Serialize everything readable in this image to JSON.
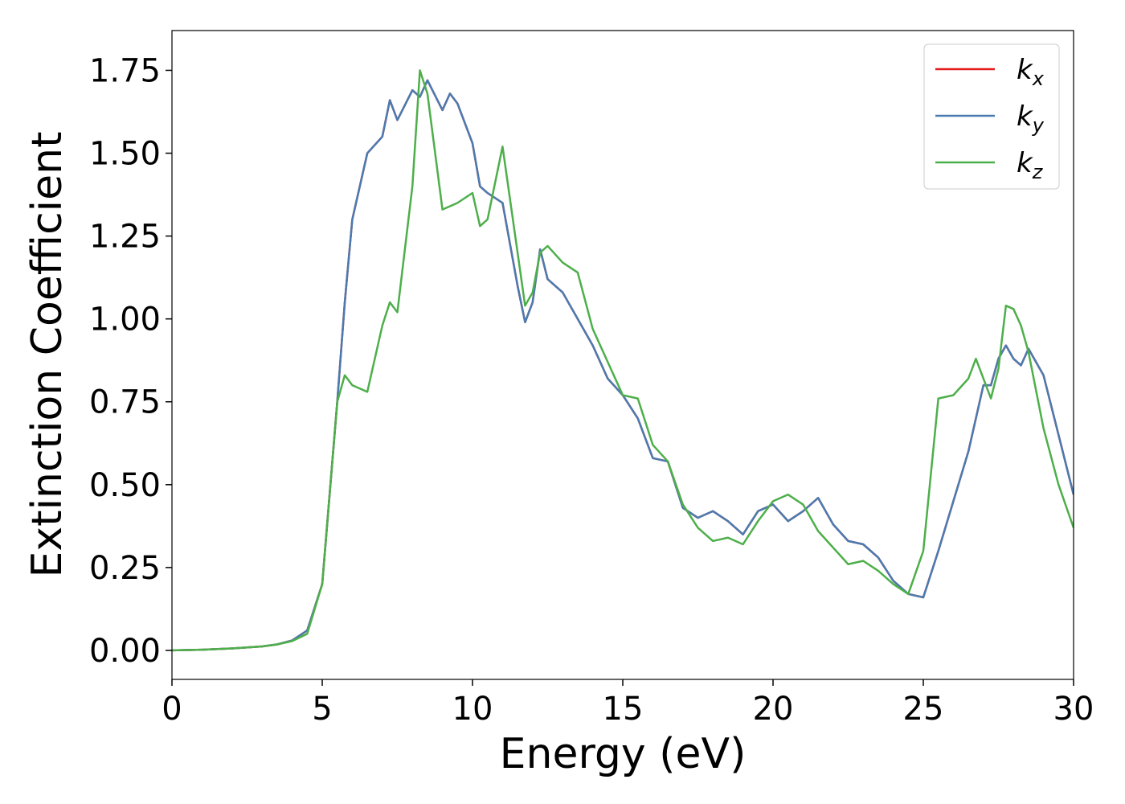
{
  "chart_data": {
    "type": "line",
    "xlabel": "Energy (eV)",
    "ylabel": "Extinction Coefficient",
    "x": [
      0,
      1,
      2,
      3,
      3.5,
      4,
      4.5,
      5,
      5.5,
      5.75,
      6,
      6.5,
      7,
      7.25,
      7.5,
      8,
      8.25,
      8.5,
      9,
      9.25,
      9.5,
      10,
      10.25,
      10.5,
      11,
      11.5,
      11.75,
      12,
      12.25,
      12.5,
      13,
      13.5,
      14,
      14.5,
      15,
      15.5,
      16,
      16.5,
      17,
      17.5,
      18,
      18.5,
      19,
      19.5,
      20,
      20.5,
      21,
      21.5,
      22,
      22.5,
      23,
      23.5,
      24,
      24.5,
      25,
      25.5,
      26,
      26.5,
      26.75,
      27,
      27.25,
      27.5,
      27.75,
      28,
      28.25,
      28.5,
      29,
      29.5,
      30
    ],
    "series": [
      {
        "name": "kx",
        "color": "#e41a1c",
        "values": [
          0,
          0.002,
          0.006,
          0.012,
          0.018,
          0.03,
          0.06,
          0.2,
          0.75,
          1.05,
          1.3,
          1.5,
          1.55,
          1.66,
          1.6,
          1.69,
          1.67,
          1.72,
          1.63,
          1.68,
          1.65,
          1.53,
          1.4,
          1.38,
          1.35,
          1.1,
          0.99,
          1.05,
          1.21,
          1.12,
          1.08,
          1.0,
          0.92,
          0.82,
          0.77,
          0.7,
          0.58,
          0.57,
          0.43,
          0.4,
          0.42,
          0.39,
          0.35,
          0.42,
          0.44,
          0.39,
          0.42,
          0.46,
          0.38,
          0.33,
          0.32,
          0.28,
          0.21,
          0.17,
          0.16,
          0.3,
          0.45,
          0.6,
          0.7,
          0.8,
          0.8,
          0.88,
          0.92,
          0.88,
          0.86,
          0.91,
          0.83,
          0.65,
          0.47
        ]
      },
      {
        "name": "ky",
        "color": "#4a7bb0",
        "values": [
          0,
          0.002,
          0.006,
          0.012,
          0.018,
          0.03,
          0.06,
          0.2,
          0.75,
          1.05,
          1.3,
          1.5,
          1.55,
          1.66,
          1.6,
          1.69,
          1.67,
          1.72,
          1.63,
          1.68,
          1.65,
          1.53,
          1.4,
          1.38,
          1.35,
          1.1,
          0.99,
          1.05,
          1.21,
          1.12,
          1.08,
          1.0,
          0.92,
          0.82,
          0.77,
          0.7,
          0.58,
          0.57,
          0.43,
          0.4,
          0.42,
          0.39,
          0.35,
          0.42,
          0.44,
          0.39,
          0.42,
          0.46,
          0.38,
          0.33,
          0.32,
          0.28,
          0.21,
          0.17,
          0.16,
          0.3,
          0.45,
          0.6,
          0.7,
          0.8,
          0.8,
          0.88,
          0.92,
          0.88,
          0.86,
          0.91,
          0.83,
          0.65,
          0.47
        ]
      },
      {
        "name": "kz",
        "color": "#4daf4a",
        "values": [
          0,
          0.002,
          0.006,
          0.012,
          0.018,
          0.028,
          0.05,
          0.2,
          0.75,
          0.83,
          0.8,
          0.78,
          0.98,
          1.05,
          1.02,
          1.4,
          1.75,
          1.68,
          1.33,
          1.34,
          1.35,
          1.38,
          1.28,
          1.3,
          1.52,
          1.2,
          1.04,
          1.08,
          1.2,
          1.22,
          1.17,
          1.14,
          0.97,
          0.87,
          0.77,
          0.76,
          0.62,
          0.57,
          0.44,
          0.37,
          0.33,
          0.34,
          0.32,
          0.39,
          0.45,
          0.47,
          0.44,
          0.36,
          0.31,
          0.26,
          0.27,
          0.24,
          0.2,
          0.17,
          0.3,
          0.76,
          0.77,
          0.82,
          0.88,
          0.82,
          0.76,
          0.85,
          1.04,
          1.03,
          0.98,
          0.9,
          0.67,
          0.5,
          0.37
        ]
      }
    ],
    "xlim": [
      0,
      30
    ],
    "ylim": [
      -0.0875,
      1.87
    ],
    "xticks": [
      0,
      5,
      10,
      15,
      20,
      25,
      30
    ],
    "yticks": [
      {
        "value": 0,
        "label": "0.00"
      },
      {
        "value": 0.25,
        "label": "0.25"
      },
      {
        "value": 0.5,
        "label": "0.50"
      },
      {
        "value": 0.75,
        "label": "0.75"
      },
      {
        "value": 1,
        "label": "1.00"
      },
      {
        "value": 1.25,
        "label": "1.25"
      },
      {
        "value": 1.5,
        "label": "1.50"
      },
      {
        "value": 1.75,
        "label": "1.75"
      }
    ],
    "legend": "upper right"
  }
}
